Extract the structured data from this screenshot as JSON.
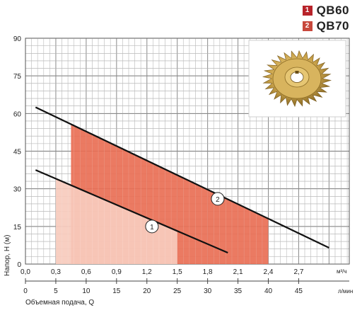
{
  "legend": [
    {
      "num": "1",
      "name": "QB60",
      "color": "#b8232a"
    },
    {
      "num": "2",
      "name": "QB70",
      "color": "#c8483c"
    }
  ],
  "chart_data": {
    "type": "line",
    "title": "",
    "ylabel": "Напор, Н (м)",
    "xlabel": "Объемная подача, Q",
    "x_unit": "м³/ч",
    "x2_unit": "л/мин",
    "xlim": [
      0,
      3.2
    ],
    "ylim": [
      0,
      90
    ],
    "x_ticks": [
      "0,0",
      "0,3",
      "0,6",
      "0,9",
      "1,2",
      "1,5",
      "1,8",
      "2,1",
      "2,4",
      "2,7"
    ],
    "x_tick_values": [
      0,
      0.3,
      0.6,
      0.9,
      1.2,
      1.5,
      1.8,
      2.1,
      2.4,
      2.7
    ],
    "y_ticks": [
      "0",
      "15",
      "30",
      "45",
      "60",
      "75",
      "90"
    ],
    "y_tick_values": [
      0,
      15,
      30,
      45,
      60,
      75,
      90
    ],
    "x2_ticks": [
      "0",
      "5",
      "10",
      "15",
      "20",
      "25",
      "30",
      "35",
      "40",
      "45"
    ],
    "x2_tick_values": [
      0,
      5,
      10,
      15,
      20,
      25,
      30,
      35,
      40,
      45
    ],
    "grid": true,
    "series": [
      {
        "label": "1",
        "color": "#111111",
        "points": [
          [
            0.1,
            37.5
          ],
          [
            2.0,
            4.5
          ]
        ],
        "work_zone": {
          "x": [
            0.3,
            1.5
          ],
          "color": "#f7cbbd"
        }
      },
      {
        "label": "2",
        "color": "#111111",
        "points": [
          [
            0.1,
            62.5
          ],
          [
            3.0,
            6.5
          ]
        ],
        "work_zone": {
          "x": [
            0.45,
            2.4
          ],
          "color": "#e96f55"
        }
      }
    ],
    "curve_labels": [
      {
        "text": "1",
        "x": 1.25,
        "y": 15
      },
      {
        "text": "2",
        "x": 1.9,
        "y": 26
      }
    ],
    "inset_image": "impeller-photo"
  }
}
